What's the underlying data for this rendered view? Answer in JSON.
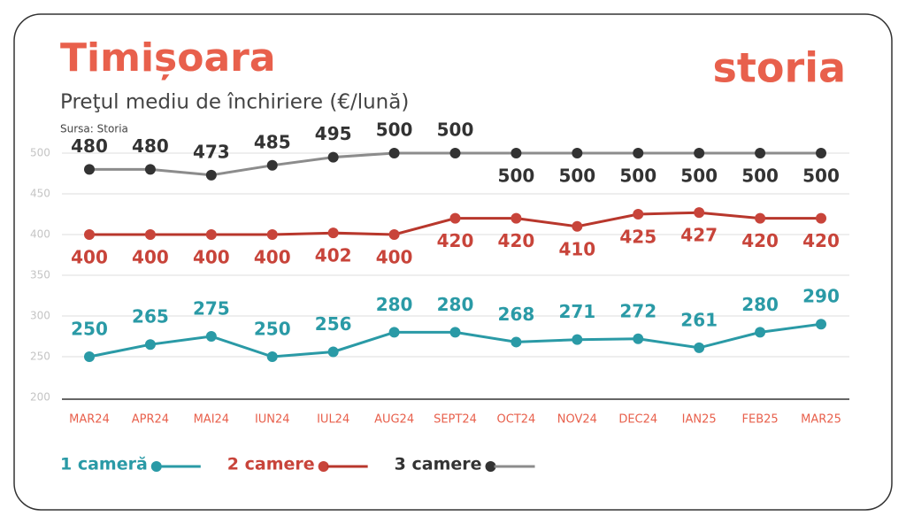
{
  "chart_data": {
    "type": "line",
    "title": "Timișoara",
    "subtitle": "Preţul mediu de închiriere (€/lună)",
    "source": "Sursa: Storia",
    "logo": "storia",
    "categories": [
      "MAR24",
      "APR24",
      "MAI24",
      "IUN24",
      "IUL24",
      "AUG24",
      "SEPT24",
      "OCT24",
      "NOV24",
      "DEC24",
      "IAN25",
      "FEB25",
      "MAR25"
    ],
    "series": [
      {
        "name": "1 cameră",
        "color": "#2a9aa6",
        "marker_color": "#2a9aa6",
        "values": [
          250,
          265,
          275,
          250,
          256,
          280,
          280,
          268,
          271,
          272,
          261,
          280,
          290
        ]
      },
      {
        "name": "2 camere",
        "color": "#b8372c",
        "marker_color": "#c8443a",
        "values": [
          400,
          400,
          400,
          400,
          402,
          400,
          420,
          420,
          410,
          425,
          427,
          420,
          420
        ]
      },
      {
        "name": "3 camere",
        "color": "#8c8c8c",
        "marker_color": "#333333",
        "values": [
          480,
          480,
          473,
          485,
          495,
          500,
          500,
          500,
          500,
          500,
          500,
          500,
          500
        ]
      }
    ],
    "ylim": [
      200,
      500
    ],
    "yticks": [
      200,
      250,
      300,
      350,
      400,
      450,
      500
    ],
    "grid": true
  }
}
